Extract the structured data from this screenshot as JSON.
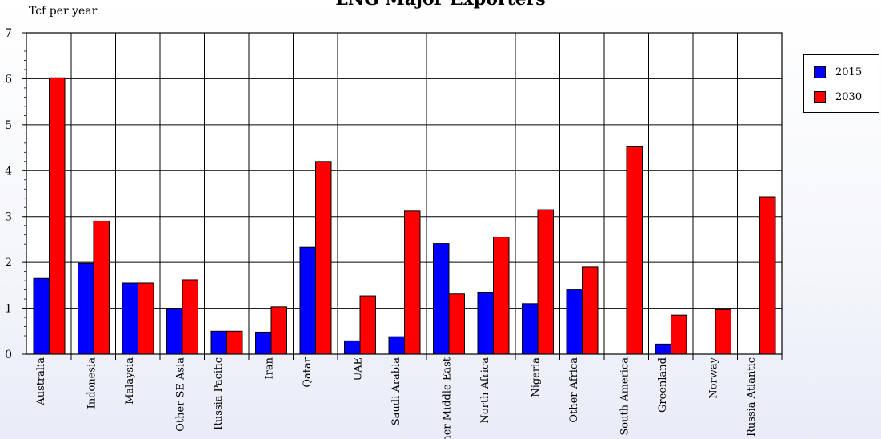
{
  "chart_data": {
    "type": "bar",
    "title": "LNG Major Exporters",
    "ylabel": "Tcf per year",
    "xlabel": "",
    "ylim": [
      0,
      7
    ],
    "yticks": [
      "0",
      "1",
      "2",
      "3",
      "4",
      "5",
      "6",
      "7"
    ],
    "grid": true,
    "legend_position": "right",
    "categories": [
      "Australia",
      "Indonesia",
      "Malaysia",
      "Other SE Asia",
      "Russia Pacific",
      "Iran",
      "Qatar",
      "UAE",
      "Saudi Arabia",
      "Other Middle East",
      "North Africa",
      "Nigeria",
      "Other Africa",
      "South America",
      "Greenland",
      "Norway",
      "Russia Atlantic"
    ],
    "series": [
      {
        "name": "2015",
        "color": "#0000ff",
        "values": [
          1.65,
          1.98,
          1.55,
          1.0,
          0.5,
          0.48,
          2.33,
          0.29,
          0.38,
          2.41,
          1.35,
          1.1,
          1.4,
          0.0,
          0.22,
          0.0,
          0.0
        ]
      },
      {
        "name": "2030",
        "color": "#ff0000",
        "values": [
          6.02,
          2.9,
          1.55,
          1.62,
          0.5,
          1.03,
          4.2,
          1.27,
          3.12,
          1.31,
          2.55,
          3.15,
          1.9,
          4.52,
          0.85,
          0.97,
          3.43
        ]
      }
    ]
  }
}
